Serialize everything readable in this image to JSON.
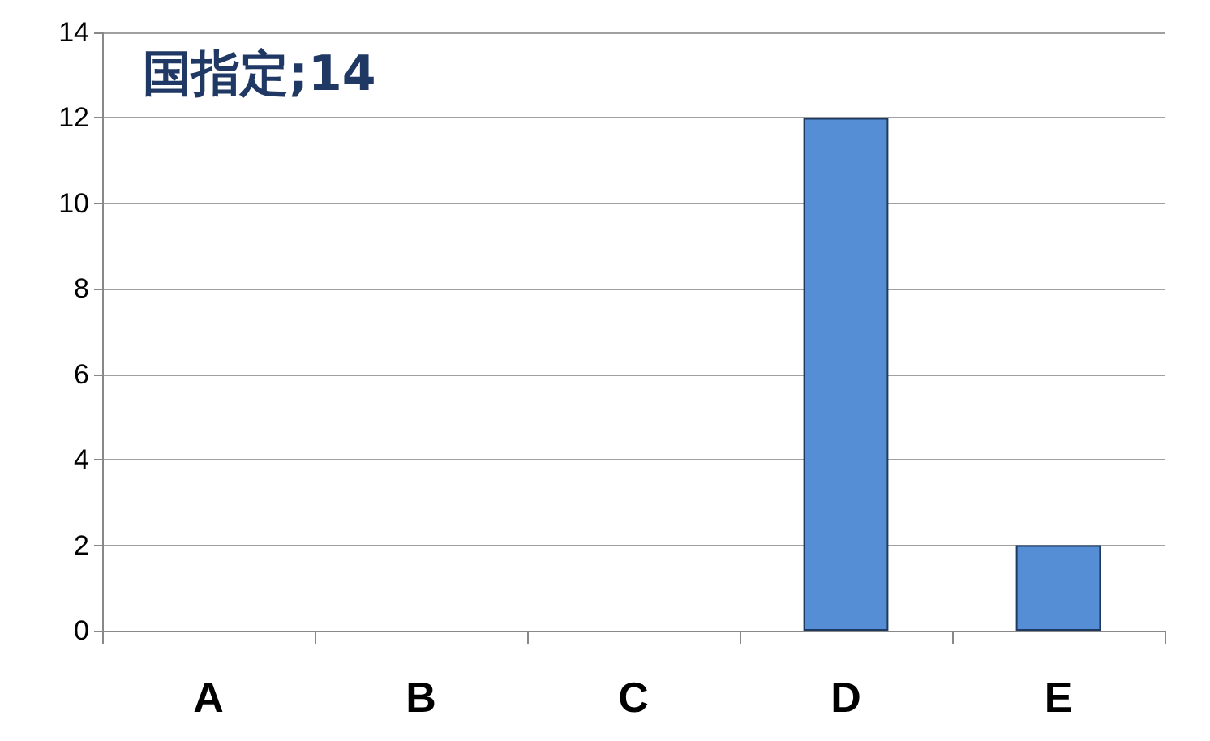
{
  "chart_data": {
    "type": "bar",
    "title": "国指定;14",
    "categories": [
      "A",
      "B",
      "C",
      "D",
      "E"
    ],
    "values": [
      0,
      0,
      0,
      12,
      2
    ],
    "color": "#558ed5",
    "ylim": [
      0,
      14
    ],
    "yticks": [
      0,
      2,
      4,
      6,
      8,
      10,
      12,
      14
    ],
    "grid": "y"
  }
}
